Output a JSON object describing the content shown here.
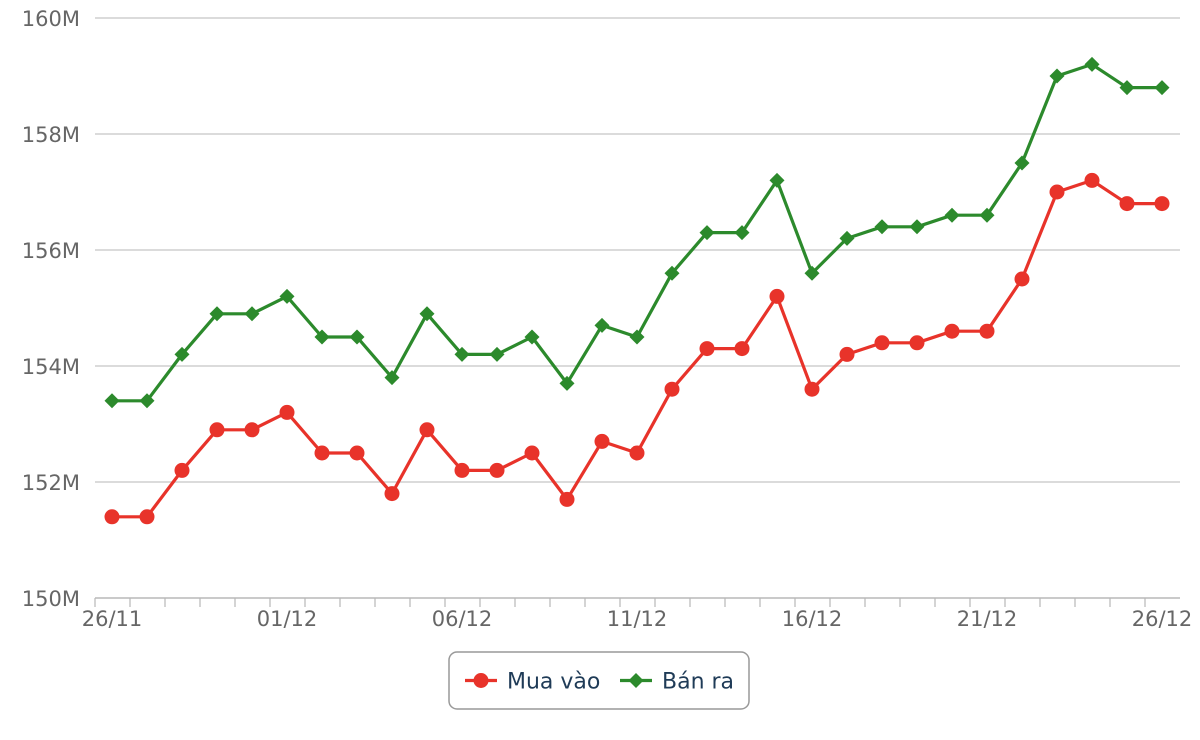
{
  "colors": {
    "buy": "#e8332a",
    "sell": "#2c8a2c",
    "grid": "#cfcfcf",
    "text": "#666666",
    "legend_text": "#1f3b57"
  },
  "legend": {
    "placement": "bottom-center",
    "items": [
      {
        "label": "Mua vào",
        "color": "#e8332a",
        "marker": "circle"
      },
      {
        "label": "Bán ra",
        "color": "#2c8a2c",
        "marker": "diamond"
      }
    ]
  },
  "chart_data": {
    "type": "line",
    "title": "",
    "xlabel": "",
    "ylabel": "",
    "grid": true,
    "x": [
      "26/11",
      "27/11",
      "28/11",
      "29/11",
      "30/11",
      "01/12",
      "02/12",
      "03/12",
      "04/12",
      "05/12",
      "06/12",
      "07/12",
      "08/12",
      "09/12",
      "10/12",
      "11/12",
      "12/12",
      "13/12",
      "14/12",
      "15/12",
      "16/12",
      "17/12",
      "18/12",
      "19/12",
      "20/12",
      "21/12",
      "22/12",
      "23/12",
      "24/12",
      "25/12",
      "26/12"
    ],
    "x_tick_labels": [
      "26/11",
      "01/12",
      "06/12",
      "11/12",
      "16/12",
      "21/12",
      "26/12"
    ],
    "y_tick_labels": [
      "150M",
      "152M",
      "154M",
      "156M",
      "158M",
      "160M"
    ],
    "y_ticks": [
      150,
      152,
      154,
      156,
      158,
      160
    ],
    "ylim": [
      150,
      160
    ],
    "y_unit": "M",
    "series": [
      {
        "name": "Mua vào",
        "color": "#e8332a",
        "marker": "circle",
        "values": [
          151.4,
          151.4,
          152.2,
          152.9,
          152.9,
          153.2,
          152.5,
          152.5,
          151.8,
          152.9,
          152.2,
          152.2,
          152.5,
          151.7,
          152.7,
          152.5,
          153.6,
          154.3,
          154.3,
          155.2,
          153.6,
          154.2,
          154.4,
          154.4,
          154.6,
          154.6,
          155.5,
          157.0,
          157.2,
          156.8,
          156.8
        ]
      },
      {
        "name": "Bán ra",
        "color": "#2c8a2c",
        "marker": "diamond",
        "values": [
          153.4,
          153.4,
          154.2,
          154.9,
          154.9,
          155.2,
          154.5,
          154.5,
          153.8,
          154.9,
          154.2,
          154.2,
          154.5,
          153.7,
          154.7,
          154.5,
          155.6,
          156.3,
          156.3,
          157.2,
          155.6,
          156.2,
          156.4,
          156.4,
          156.6,
          156.6,
          157.5,
          159.0,
          159.2,
          158.8,
          158.8
        ]
      }
    ]
  }
}
